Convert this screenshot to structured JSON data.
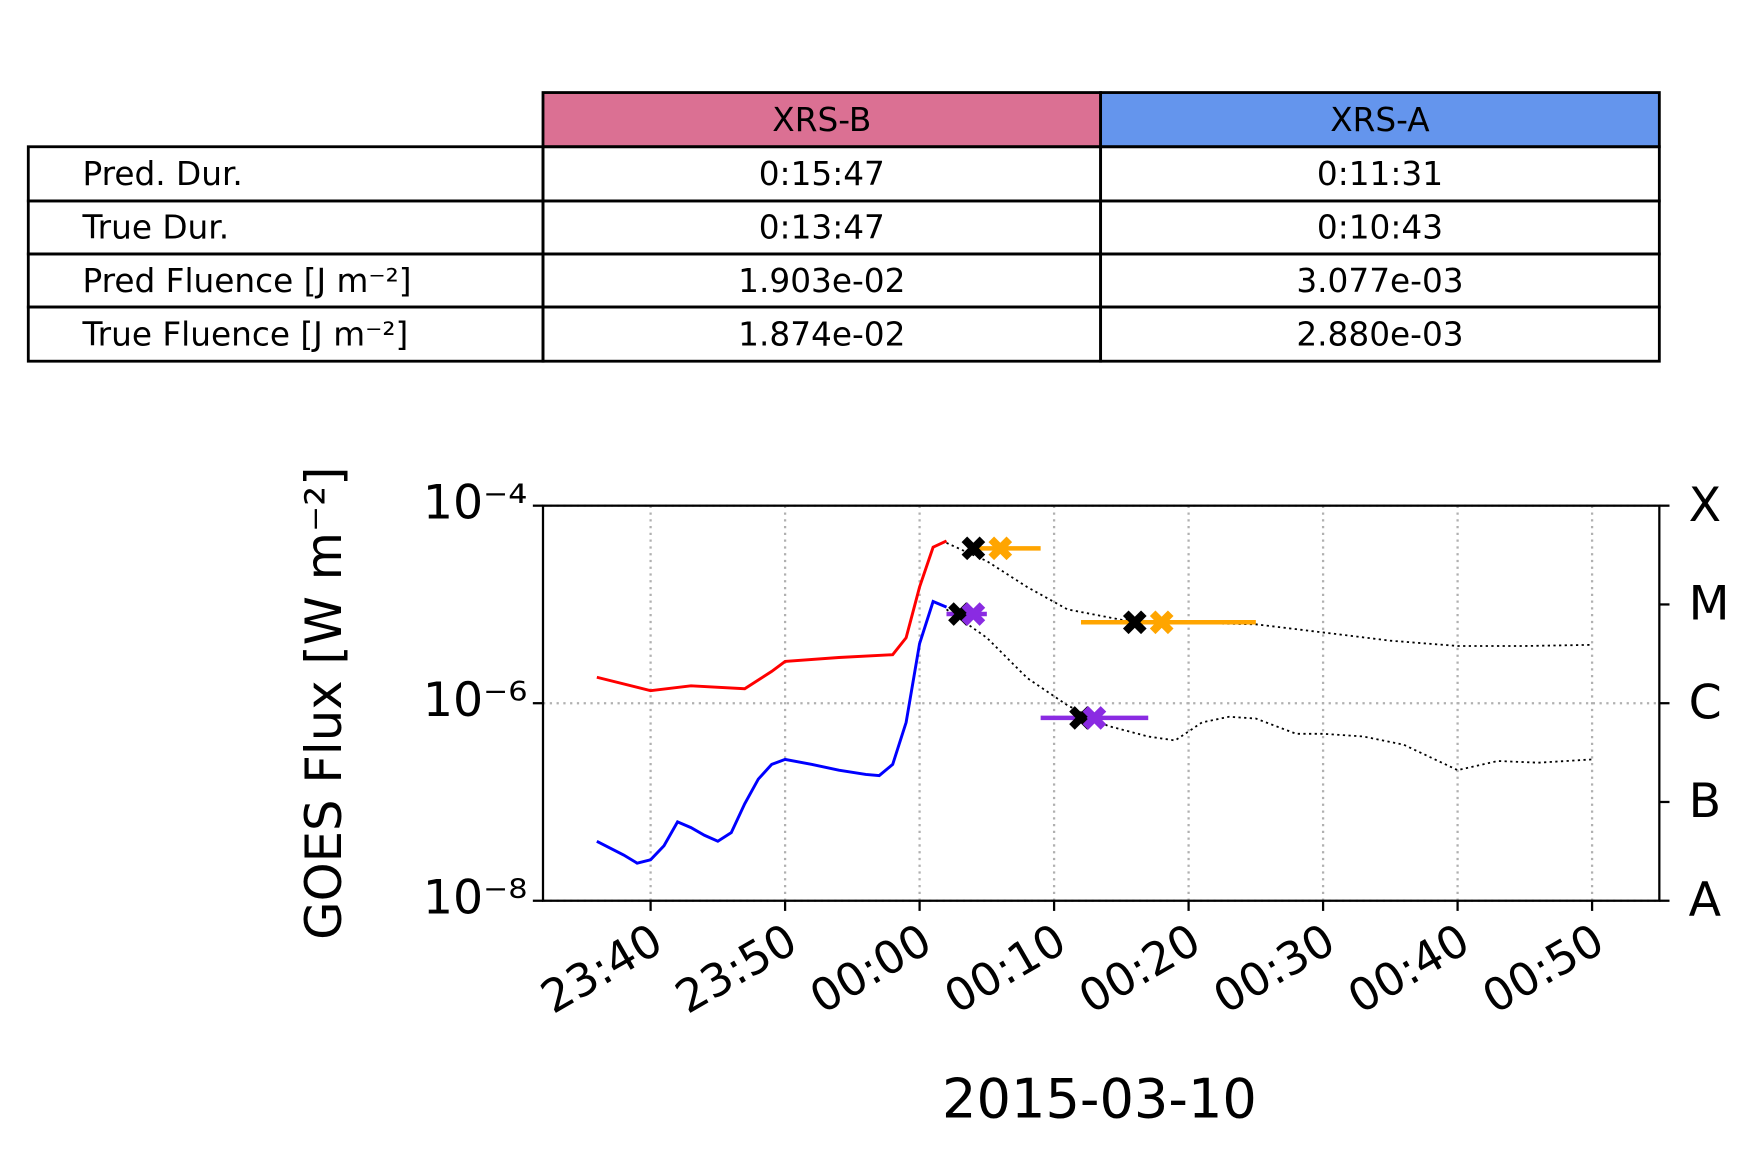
{
  "table": {
    "columns": [
      {
        "label": "XRS-B",
        "color": "#db7093"
      },
      {
        "label": "XRS-A",
        "color": "#6495ed"
      }
    ],
    "rows": [
      [
        "Pred. Dur.",
        "0:15:47",
        "0:11:31"
      ],
      [
        "True Dur.",
        "0:13:47",
        "0:10:43"
      ],
      [
        "Pred Fluence [J m⁻²]",
        "1.903e-02",
        "3.077e-03"
      ],
      [
        "True Fluence [J m⁻²]",
        "1.874e-02",
        "2.880e-03"
      ]
    ]
  },
  "chart_data": {
    "type": "line",
    "xlabel": "2015-03-10",
    "ylabel": "GOES Flux [W m⁻²]",
    "xlim": [
      "23:32",
      "00:55"
    ],
    "xticks": [
      "23:40",
      "23:50",
      "00:00",
      "00:10",
      "00:20",
      "00:30",
      "00:40",
      "00:50"
    ],
    "ylog": true,
    "ylim": [
      1e-08,
      0.0001
    ],
    "yticks": [
      {
        "value": 1e-08,
        "label": "10⁻⁸"
      },
      {
        "value": 1e-06,
        "label": "10⁻⁶"
      },
      {
        "value": 0.0001,
        "label": "10⁻⁴"
      }
    ],
    "y2lim": [
      1e-08,
      0.0001
    ],
    "y2ticks": [
      {
        "value": 1e-08,
        "label": "A"
      },
      {
        "value": 1e-07,
        "label": "B"
      },
      {
        "value": 1e-06,
        "label": "C"
      },
      {
        "value": 1e-05,
        "label": "M"
      },
      {
        "value": 0.0001,
        "label": "X"
      }
    ],
    "grid": true,
    "series": [
      {
        "color": "#ff0000",
        "linestyle": "solid",
        "x": [
          "23:36",
          "23:40",
          "23:43",
          "23:47",
          "23:49",
          "23:50",
          "23:54",
          "23:58",
          "23:59",
          "00:00",
          "00:01",
          "00:02"
        ],
        "values": [
          1.83e-06,
          1.34e-06,
          1.5e-06,
          1.4e-06,
          2.1e-06,
          2.65e-06,
          2.9e-06,
          3.1e-06,
          4.6e-06,
          1.5e-05,
          3.8e-05,
          4.4e-05
        ]
      },
      {
        "color": "#0000ff",
        "linestyle": "solid",
        "x": [
          "23:36",
          "23:38",
          "23:39",
          "23:40",
          "23:41",
          "23:42",
          "23:43",
          "23:44",
          "23:45",
          "23:46",
          "23:47",
          "23:48",
          "23:49",
          "23:50",
          "23:52",
          "23:54",
          "23:56",
          "23:57",
          "23:58",
          "23:59",
          "00:00",
          "00:01",
          "00:02"
        ],
        "values": [
          4e-08,
          2.9e-08,
          2.4e-08,
          2.6e-08,
          3.6e-08,
          6.3e-08,
          5.5e-08,
          4.6e-08,
          4e-08,
          4.9e-08,
          9.6e-08,
          1.7e-07,
          2.4e-07,
          2.7e-07,
          2.4e-07,
          2.1e-07,
          1.9e-07,
          1.85e-07,
          2.4e-07,
          6.4e-07,
          4e-06,
          1.07e-05,
          9.4e-06
        ]
      },
      {
        "color": "#000000",
        "linestyle": "dotted",
        "x": [
          "00:02",
          "00:05",
          "00:08",
          "00:11",
          "00:15",
          "00:20",
          "00:25",
          "00:30",
          "00:35",
          "00:40",
          "00:45",
          "00:50"
        ],
        "values": [
          4.2e-05,
          2.75e-05,
          1.5e-05,
          8.9e-06,
          7e-06,
          6.5e-06,
          6.3e-06,
          5.2e-06,
          4.3e-06,
          3.8e-06,
          3.8e-06,
          3.9e-06
        ]
      },
      {
        "color": "#000000",
        "linestyle": "dotted",
        "x": [
          "00:02",
          "00:05",
          "00:08",
          "00:11",
          "00:14",
          "00:17",
          "00:19",
          "00:21",
          "00:23",
          "00:25",
          "00:28",
          "00:30",
          "00:33",
          "00:36",
          "00:40",
          "00:43",
          "00:46",
          "00:50"
        ],
        "values": [
          8.9e-06,
          4.6e-06,
          1.8e-06,
          9.5e-07,
          5.9e-07,
          4.6e-07,
          4.2e-07,
          6.4e-07,
          7.3e-07,
          7e-07,
          4.9e-07,
          4.9e-07,
          4.6e-07,
          3.8e-07,
          2.1e-07,
          2.6e-07,
          2.5e-07,
          2.7e-07
        ]
      }
    ],
    "markers": [
      {
        "color": "#000000",
        "x": [
          "00:04",
          "00:03",
          "00:16",
          "00:12"
        ],
        "values": [
          3.7e-05,
          8e-06,
          6.6e-06,
          7.1e-07
        ]
      },
      {
        "color": "#ffa500",
        "x": [
          "00:06",
          "00:18"
        ],
        "values": [
          3.7e-05,
          6.6e-06
        ],
        "xmin": [
          "00:04",
          "00:12"
        ],
        "xmax": [
          "00:09",
          "00:25"
        ]
      },
      {
        "color": "#8a2be2",
        "x": [
          "00:04",
          "00:13"
        ],
        "values": [
          8e-06,
          7.1e-07
        ],
        "xmin": [
          "00:02",
          "00:09"
        ],
        "xmax": [
          "00:05",
          "00:17"
        ]
      }
    ]
  }
}
